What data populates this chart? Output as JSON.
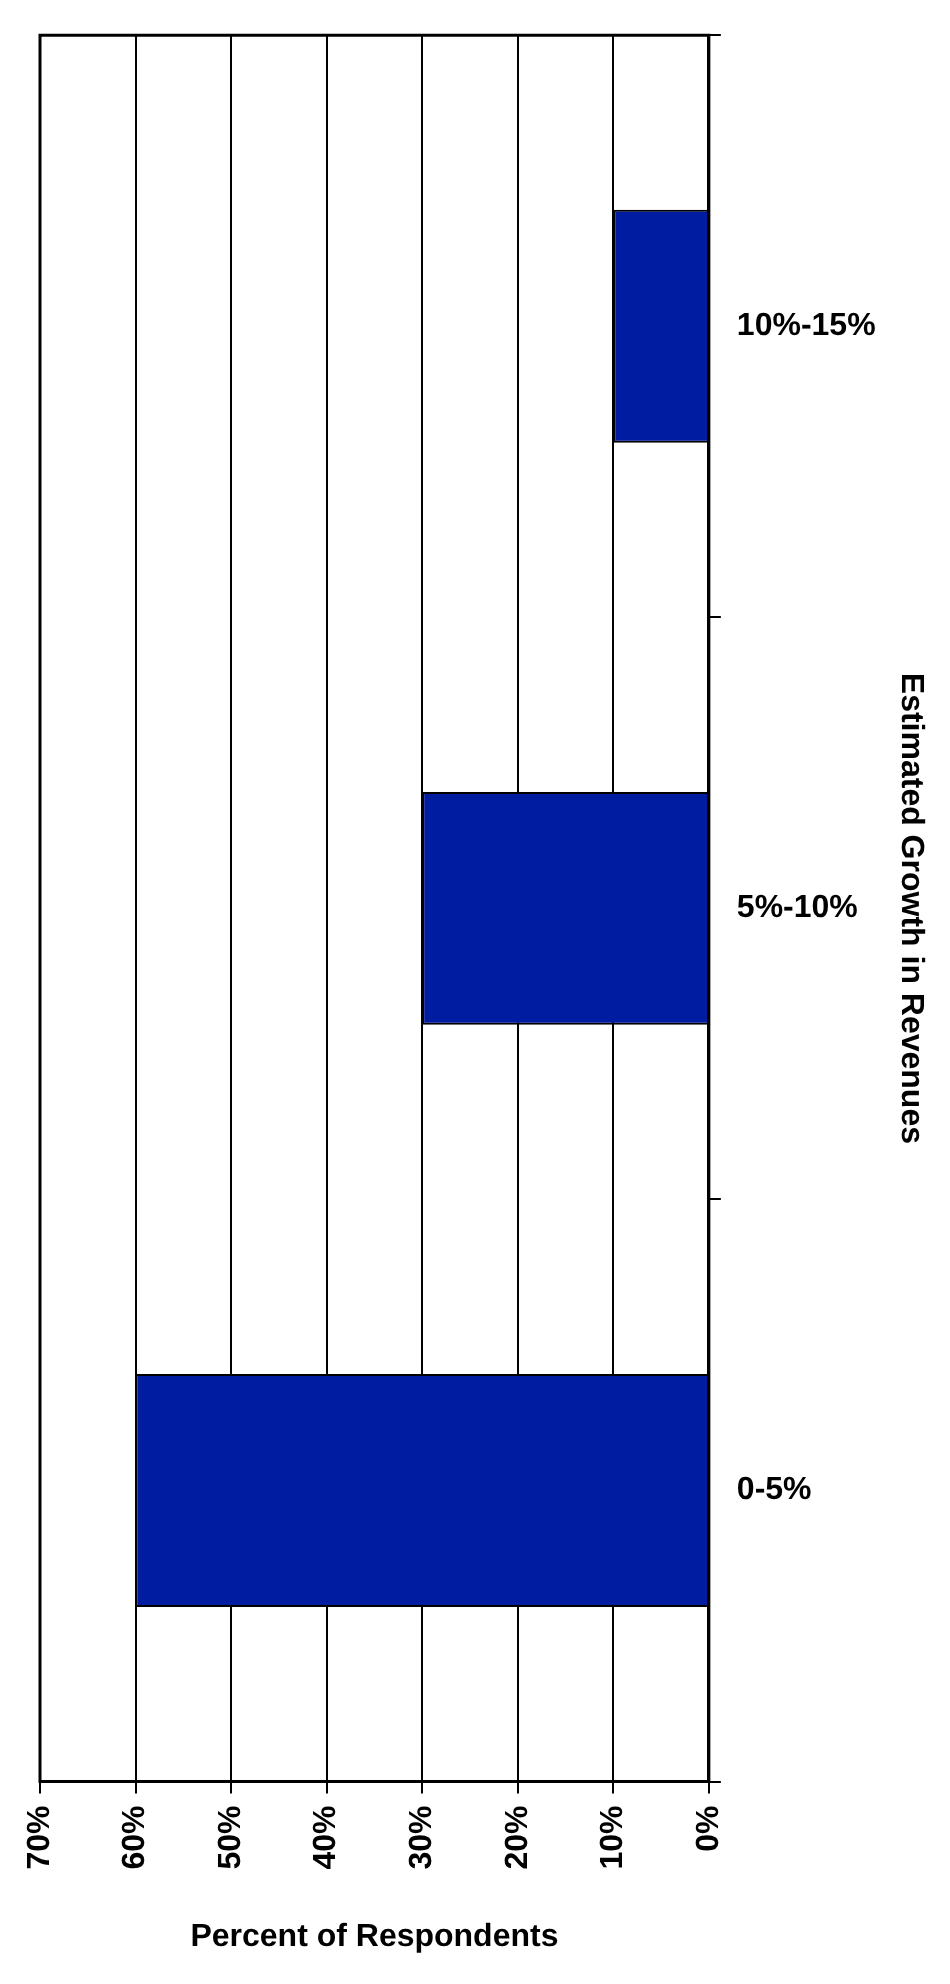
{
  "chart_data": {
    "type": "bar",
    "orientation": "horizontal",
    "xlabel": "Percent of Respondents",
    "ylabel": "Estimated Growth in Revenues",
    "categories": [
      "10%-15%",
      "5%-10%",
      "0-5%"
    ],
    "values": [
      10,
      30,
      60
    ],
    "color": "#001ca0",
    "xlim": [
      70,
      0
    ],
    "xticks": [
      {
        "value": 70,
        "label": "70%"
      },
      {
        "value": 60,
        "label": "60%"
      },
      {
        "value": 50,
        "label": "50%"
      },
      {
        "value": 40,
        "label": "40%"
      },
      {
        "value": 30,
        "label": "30%"
      },
      {
        "value": 20,
        "label": "20%"
      },
      {
        "value": 10,
        "label": "10%"
      },
      {
        "value": 0,
        "label": "0%"
      }
    ],
    "grid": "x"
  }
}
